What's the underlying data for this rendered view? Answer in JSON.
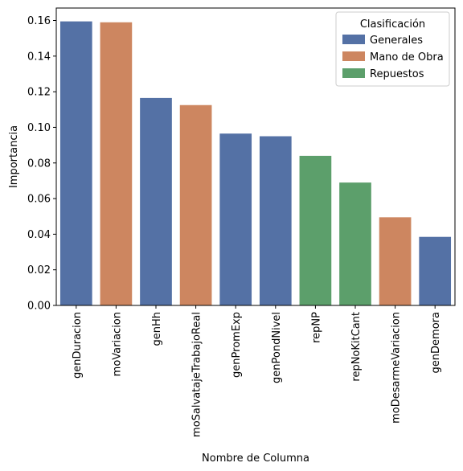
{
  "chart_data": {
    "type": "bar",
    "categories": [
      "genDuracion",
      "moVariacion",
      "genHh",
      "moSalvatajeTrabajoReal",
      "genPromExp",
      "genPondNivel",
      "repNP",
      "repNoKitCant",
      "moDesarmeVariacion",
      "genDemora"
    ],
    "values": [
      0.1595,
      0.159,
      0.1165,
      0.1125,
      0.0965,
      0.095,
      0.084,
      0.069,
      0.0495,
      0.0385
    ],
    "groups": [
      "Generales",
      "Mano de Obra",
      "Generales",
      "Mano de Obra",
      "Generales",
      "Generales",
      "Repuestos",
      "Repuestos",
      "Mano de Obra",
      "Generales"
    ],
    "xlabel": "Nombre de Columna",
    "ylabel": "Importancia",
    "ylim": [
      0,
      0.167
    ],
    "yticks": [
      "0.00",
      "0.02",
      "0.04",
      "0.06",
      "0.08",
      "0.10",
      "0.12",
      "0.14",
      "0.16"
    ],
    "legend": {
      "title": "Clasificación",
      "position": "top-right",
      "entries": [
        {
          "name": "Generales",
          "color": "#5471a5"
        },
        {
          "name": "Mano de Obra",
          "color": "#cd8660"
        },
        {
          "name": "Repuestos",
          "color": "#5c9f6b"
        }
      ]
    },
    "grid": false
  }
}
